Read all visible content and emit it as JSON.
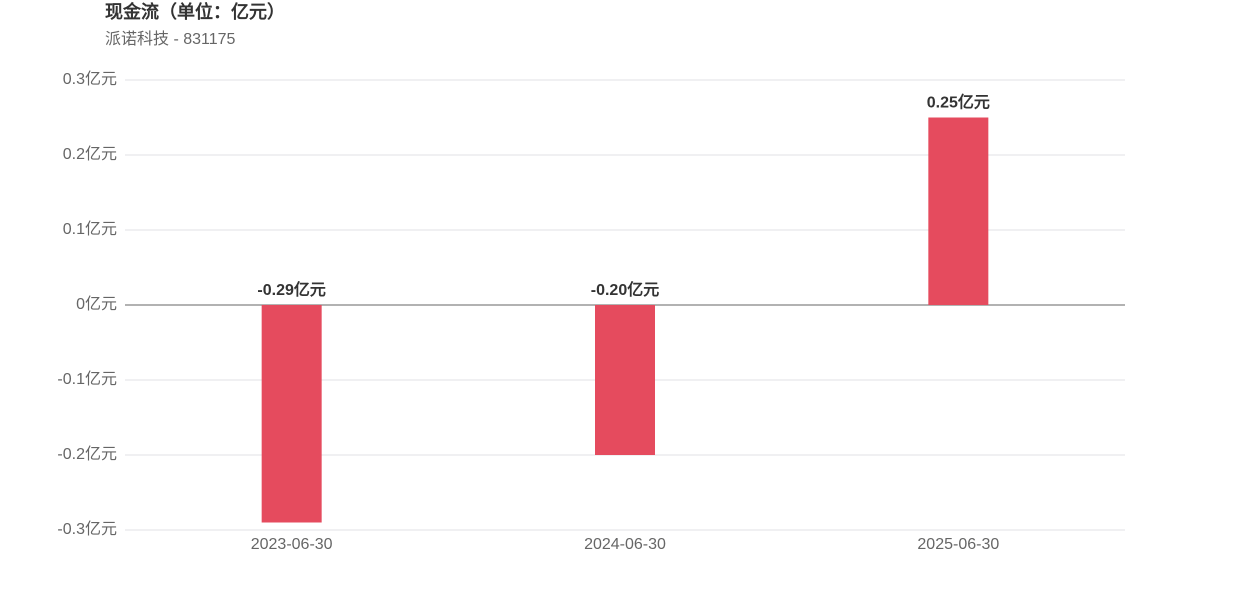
{
  "chart_data": {
    "type": "bar",
    "title": "现金流（单位：亿元）",
    "subtitle": "派诺科技 - 831175",
    "categories": [
      "2023-06-30",
      "2024-06-30",
      "2025-06-30"
    ],
    "values": [
      -0.29,
      -0.2,
      0.25
    ],
    "value_labels": [
      "-0.29亿元",
      "-0.20亿元",
      "0.25亿元"
    ],
    "color": "#e54b5e",
    "ylim": [
      -0.3,
      0.3
    ],
    "yticks": [
      {
        "value": -0.3,
        "label": "-0.3亿元"
      },
      {
        "value": -0.2,
        "label": "-0.2亿元"
      },
      {
        "value": -0.1,
        "label": "-0.1亿元"
      },
      {
        "value": 0,
        "label": "0亿元"
      },
      {
        "value": 0.1,
        "label": "0.1亿元"
      },
      {
        "value": 0.2,
        "label": "0.2亿元"
      },
      {
        "value": 0.3,
        "label": "0.3亿元"
      }
    ],
    "grid": true
  }
}
